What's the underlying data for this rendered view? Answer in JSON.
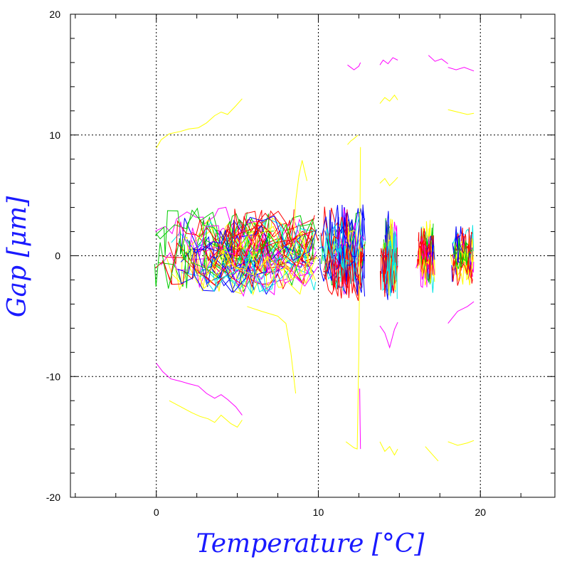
{
  "chart_data": {
    "type": "line",
    "title": "",
    "xlabel": "Temperature [°C]",
    "ylabel": "Gap [μm]",
    "xlim": [
      -5.3,
      24.6
    ],
    "ylim": [
      -20,
      20
    ],
    "x_ticks": [
      0,
      10,
      20
    ],
    "y_ticks": [
      -20,
      -10,
      0,
      10,
      20
    ],
    "grid": true,
    "legend": "none",
    "series_colors": [
      "#0000ff",
      "#ff00ff",
      "#00e5e5",
      "#ffff00",
      "#00cc00",
      "#ff0000"
    ],
    "series": [
      {
        "color": "#ffff00",
        "x": [
          0.0,
          0.3,
          0.8,
          1.5,
          2.0,
          2.6,
          3.1,
          3.6,
          4.0,
          4.4,
          4.9,
          5.3
        ],
        "y": [
          8.9,
          9.6,
          10.1,
          10.3,
          10.5,
          10.6,
          11.0,
          11.6,
          11.9,
          11.7,
          12.4,
          13.0
        ]
      },
      {
        "color": "#ff00ff",
        "x": [
          0.0,
          0.4,
          0.9,
          1.5,
          2.0,
          2.6,
          3.1,
          3.6,
          4.0,
          4.4,
          4.9,
          5.3
        ],
        "y": [
          -8.9,
          -9.6,
          -10.2,
          -10.4,
          -10.6,
          -10.8,
          -11.4,
          -11.8,
          -11.5,
          -11.9,
          -12.5,
          -13.2
        ]
      },
      {
        "color": "#ffff00",
        "x": [
          0.8,
          1.5,
          2.2,
          2.7,
          3.2,
          3.6,
          4.0,
          4.6,
          5.0,
          5.3
        ],
        "y": [
          -12.0,
          -12.5,
          -13.0,
          -13.3,
          -13.5,
          -13.8,
          -13.2,
          -13.9,
          -14.2,
          -13.6
        ]
      },
      {
        "color": "#ffff00",
        "x": [
          5.6,
          6.5,
          7.5,
          8.0,
          8.3,
          8.6
        ],
        "y": [
          -4.2,
          -4.6,
          -5.0,
          -5.6,
          -8.0,
          -11.4
        ]
      },
      {
        "color": "#ffff00",
        "x": [
          8.5,
          8.6,
          8.8,
          9.0,
          9.3
        ],
        "y": [
          2.0,
          4.5,
          6.6,
          7.9,
          6.2
        ]
      },
      {
        "color": "#ff00ff",
        "x": [
          11.8,
          12.0,
          12.2,
          12.5,
          12.6
        ],
        "y": [
          15.8,
          15.6,
          15.4,
          15.7,
          16.0
        ]
      },
      {
        "color": "#ffff00",
        "x": [
          11.7,
          12.0,
          12.2,
          12.4,
          12.5,
          12.55,
          12.6
        ],
        "y": [
          -15.4,
          -15.7,
          -15.9,
          -16.0,
          -8.0,
          0.0,
          9.0
        ]
      },
      {
        "color": "#ffff00",
        "x": [
          11.8,
          12.0,
          12.2,
          12.45
        ],
        "y": [
          9.2,
          9.5,
          9.7,
          10.0
        ]
      },
      {
        "color": "#ff00ff",
        "x": [
          12.55,
          12.58,
          12.6
        ],
        "y": [
          -11.0,
          -14.0,
          -16.0
        ]
      },
      {
        "color": "#ff00ff",
        "x": [
          13.8,
          14.0,
          14.3,
          14.6,
          14.9
        ],
        "y": [
          15.8,
          16.2,
          15.9,
          16.4,
          16.2
        ]
      },
      {
        "color": "#ffff00",
        "x": [
          13.8,
          14.1,
          14.4,
          14.7,
          14.9
        ],
        "y": [
          12.6,
          13.1,
          12.8,
          13.3,
          12.9
        ]
      },
      {
        "color": "#ffff00",
        "x": [
          13.8,
          14.1,
          14.4,
          14.7,
          14.9
        ],
        "y": [
          6.0,
          6.4,
          5.8,
          6.2,
          6.5
        ]
      },
      {
        "color": "#ff00ff",
        "x": [
          13.8,
          14.1,
          14.4,
          14.7,
          14.9
        ],
        "y": [
          -5.8,
          -6.4,
          -7.6,
          -6.1,
          -5.5
        ]
      },
      {
        "color": "#ffff00",
        "x": [
          13.8,
          14.1,
          14.4,
          14.7,
          14.9
        ],
        "y": [
          -15.4,
          -16.2,
          -15.8,
          -16.5,
          -16.0
        ]
      },
      {
        "color": "#ff00ff",
        "x": [
          16.8,
          17.2,
          17.6,
          18.0
        ],
        "y": [
          16.6,
          16.1,
          16.3,
          15.9
        ]
      },
      {
        "color": "#ff00ff",
        "x": [
          18.0,
          18.5,
          19.0,
          19.6
        ],
        "y": [
          15.6,
          15.4,
          15.6,
          15.3
        ]
      },
      {
        "color": "#ffff00",
        "x": [
          18.0,
          18.6,
          19.2,
          19.6
        ],
        "y": [
          12.1,
          11.9,
          11.7,
          11.8
        ]
      },
      {
        "color": "#ffff00",
        "x": [
          18.0,
          18.6,
          19.2,
          19.6
        ],
        "y": [
          -15.4,
          -15.7,
          -15.5,
          -15.3
        ]
      },
      {
        "color": "#ffff00",
        "x": [
          16.6,
          17.0,
          17.4
        ],
        "y": [
          -15.8,
          -16.4,
          -17.0
        ]
      },
      {
        "color": "#ff00ff",
        "x": [
          18.0,
          18.6,
          19.2,
          19.6
        ],
        "y": [
          -5.6,
          -4.6,
          -4.2,
          -3.8
        ]
      }
    ],
    "noise_bands": [
      {
        "x_start": -0.1,
        "x_end": 10.0,
        "y_center": 0.3,
        "y_spread": 3.2
      },
      {
        "x_start": 10.0,
        "x_end": 12.9,
        "y_center": 0.3,
        "y_spread": 3.6
      },
      {
        "x_start": 13.8,
        "x_end": 14.9,
        "y_center": 0.0,
        "y_spread": 3.4
      },
      {
        "x_start": 16.0,
        "x_end": 17.2,
        "y_center": 0.0,
        "y_spread": 2.6
      },
      {
        "x_start": 18.0,
        "x_end": 19.6,
        "y_center": 0.0,
        "y_spread": 2.2
      }
    ]
  }
}
